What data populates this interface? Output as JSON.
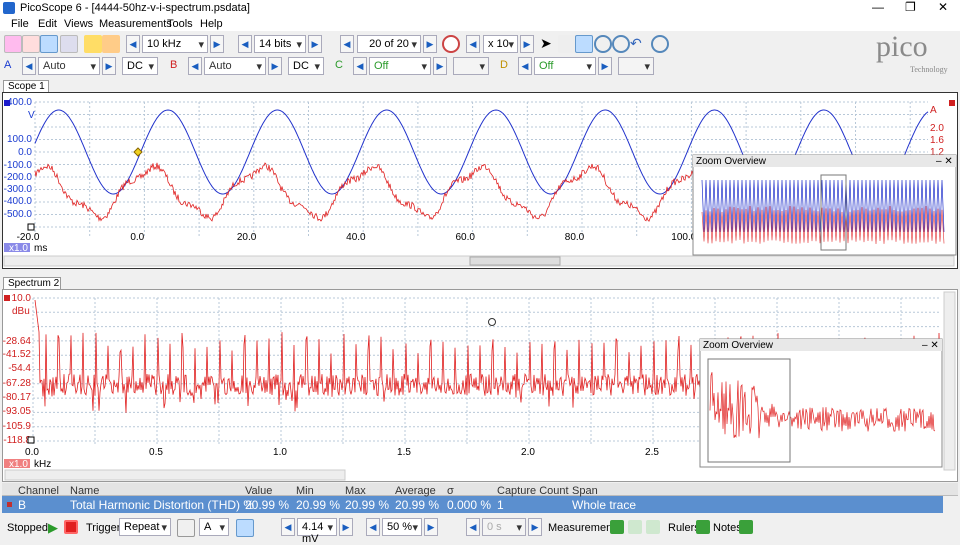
{
  "window": {
    "title": "PicoScope 6 - [4444-50hz-v-i-spectrum.psdata]",
    "menu": [
      "File",
      "Edit",
      "Views",
      "Measurements",
      "Tools",
      "Help"
    ]
  },
  "toolbar": {
    "timebase": "10 kHz",
    "resolution": "14 bits",
    "buffer": "20 of 20",
    "zoom": "x 10",
    "channels": [
      {
        "name": "A",
        "range": "Auto",
        "coupling": "DC"
      },
      {
        "name": "B",
        "range": "Auto",
        "coupling": "DC"
      },
      {
        "name": "C",
        "range": "Off"
      },
      {
        "name": "D",
        "range": "Off"
      }
    ]
  },
  "logo": {
    "name": "pico",
    "tagline": "Technology"
  },
  "scope": {
    "tab": "Scope 1",
    "y_unit": "V",
    "y_labels": [
      "400.0",
      "100.0",
      "0.0",
      "-100.0",
      "-200.0",
      "-300.0",
      "-400.0",
      "-500.0"
    ],
    "y2_unit": "A",
    "y2_labels": [
      "2.0",
      "1.6",
      "1.2"
    ],
    "x_labels": [
      "-20.0",
      "0.0",
      "20.0",
      "40.0",
      "60.0",
      "80.0",
      "100.0"
    ],
    "x_zoom": "x1.0",
    "x_unit": "ms",
    "overview_title": "Zoom Overview"
  },
  "spectrum": {
    "tab": "Spectrum 2",
    "y_unit": "dBu",
    "y_labels": [
      "10.0",
      "-28.64",
      "-41.52",
      "-54.4",
      "-67.28",
      "-80.17",
      "-93.05",
      "-105.9",
      "-118.8"
    ],
    "x_labels": [
      "0.0",
      "0.5",
      "1.0",
      "1.5",
      "2.0",
      "2.5"
    ],
    "x_zoom": "x1.0",
    "x_unit": "kHz",
    "overview_title": "Zoom Overview"
  },
  "table": {
    "headers": [
      "Channel",
      "Name",
      "Value",
      "Min",
      "Max",
      "Average",
      "σ",
      "Capture Count",
      "Span"
    ],
    "rows": [
      [
        "B",
        "Total Harmonic Distortion (THD) %",
        "20.99 %",
        "20.99 %",
        "20.99 %",
        "20.99 %",
        "0.000 %",
        "1",
        "Whole trace"
      ]
    ]
  },
  "status": {
    "state": "Stopped",
    "trigger_label": "Trigger",
    "trigger_mode": "Repeat",
    "trigger_channel": "A",
    "threshold": "4.14 mV",
    "pretrigger": "50 %",
    "delay": "0 s",
    "measurements": "Measurements",
    "rulers": "Rulers",
    "notes": "Notes"
  }
}
